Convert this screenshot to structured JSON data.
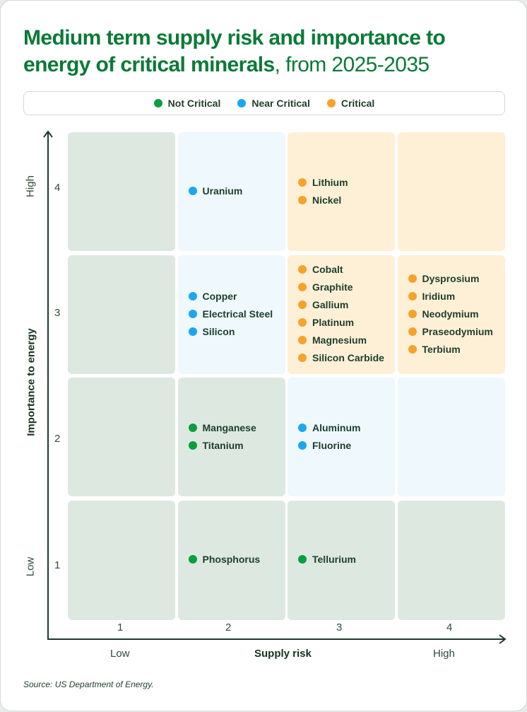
{
  "title": {
    "bold": "Medium term supply risk and importance to energy of critical minerals",
    "rest": ", from 2025-2035"
  },
  "legend": [
    {
      "label": "Not Critical",
      "color": "#0a9e3f"
    },
    {
      "label": "Near Critical",
      "color": "#1aa7f0"
    },
    {
      "label": "Critical",
      "color": "#f6a22b"
    }
  ],
  "zone_colors": {
    "not_critical": "#dde9e0",
    "near_critical": "#eef8fd",
    "critical": "#fdf0d6"
  },
  "chart_data": {
    "type": "matrix",
    "xlabel": "Supply risk",
    "ylabel": "Importance to energy",
    "x_ticks": [
      "1",
      "2",
      "3",
      "4"
    ],
    "y_ticks": [
      "1",
      "2",
      "3",
      "4"
    ],
    "x_range_labels": {
      "low": "Low",
      "high": "High"
    },
    "y_range_labels": {
      "low": "Low",
      "high": "High"
    },
    "cells": [
      {
        "supply_risk": 1,
        "importance": 4,
        "zone": "not_critical",
        "minerals": []
      },
      {
        "supply_risk": 2,
        "importance": 4,
        "zone": "near_critical",
        "minerals": [
          {
            "name": "Uranium",
            "category": "near_critical"
          }
        ]
      },
      {
        "supply_risk": 3,
        "importance": 4,
        "zone": "critical",
        "minerals": [
          {
            "name": "Lithium",
            "category": "critical"
          },
          {
            "name": "Nickel",
            "category": "critical"
          }
        ]
      },
      {
        "supply_risk": 4,
        "importance": 4,
        "zone": "critical",
        "minerals": []
      },
      {
        "supply_risk": 1,
        "importance": 3,
        "zone": "not_critical",
        "minerals": []
      },
      {
        "supply_risk": 2,
        "importance": 3,
        "zone": "near_critical",
        "minerals": [
          {
            "name": "Copper",
            "category": "near_critical"
          },
          {
            "name": "Electrical Steel",
            "category": "near_critical"
          },
          {
            "name": "Silicon",
            "category": "near_critical"
          }
        ]
      },
      {
        "supply_risk": 3,
        "importance": 3,
        "zone": "critical",
        "minerals": [
          {
            "name": "Cobalt",
            "category": "critical"
          },
          {
            "name": "Graphite",
            "category": "critical"
          },
          {
            "name": "Gallium",
            "category": "critical"
          },
          {
            "name": "Platinum",
            "category": "critical"
          },
          {
            "name": "Magnesium",
            "category": "critical"
          },
          {
            "name": "Silicon Carbide",
            "category": "critical"
          }
        ]
      },
      {
        "supply_risk": 4,
        "importance": 3,
        "zone": "critical",
        "minerals": [
          {
            "name": "Dysprosium",
            "category": "critical"
          },
          {
            "name": "Iridium",
            "category": "critical"
          },
          {
            "name": "Neodymium",
            "category": "critical"
          },
          {
            "name": "Praseodymium",
            "category": "critical"
          },
          {
            "name": "Terbium",
            "category": "critical"
          }
        ]
      },
      {
        "supply_risk": 1,
        "importance": 2,
        "zone": "not_critical",
        "minerals": []
      },
      {
        "supply_risk": 2,
        "importance": 2,
        "zone": "not_critical",
        "minerals": [
          {
            "name": "Manganese",
            "category": "not_critical"
          },
          {
            "name": "Titanium",
            "category": "not_critical"
          }
        ]
      },
      {
        "supply_risk": 3,
        "importance": 2,
        "zone": "near_critical",
        "minerals": [
          {
            "name": "Aluminum",
            "category": "near_critical"
          },
          {
            "name": "Fluorine",
            "category": "near_critical"
          }
        ]
      },
      {
        "supply_risk": 4,
        "importance": 2,
        "zone": "near_critical",
        "minerals": []
      },
      {
        "supply_risk": 1,
        "importance": 1,
        "zone": "not_critical",
        "minerals": []
      },
      {
        "supply_risk": 2,
        "importance": 1,
        "zone": "not_critical",
        "minerals": [
          {
            "name": "Phosphorus",
            "category": "not_critical"
          }
        ]
      },
      {
        "supply_risk": 3,
        "importance": 1,
        "zone": "not_critical",
        "minerals": [
          {
            "name": "Tellurium",
            "category": "not_critical"
          }
        ]
      },
      {
        "supply_risk": 4,
        "importance": 1,
        "zone": "not_critical",
        "minerals": []
      }
    ]
  },
  "source": "Source: US Department of Energy."
}
